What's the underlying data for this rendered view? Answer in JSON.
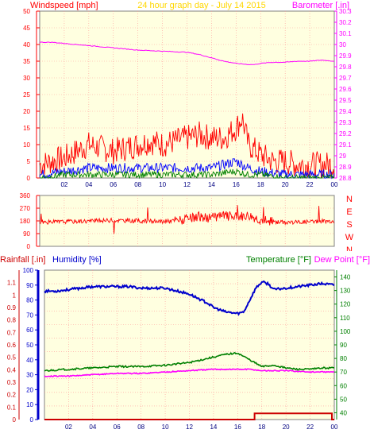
{
  "colors": {
    "background": "#ffffe0",
    "frame": "#808080",
    "grid": "#ff9999",
    "wind_avg": "#0000ff",
    "wind_gust": "#ff0000",
    "wind_min": "#008000",
    "barometer": "#ff00ff",
    "direction": "#ff0000",
    "rain": "#cc0000",
    "humidity": "#0000cc",
    "temperature": "#008000",
    "dewpoint": "#ff00ff",
    "title": "#ffd700"
  },
  "chart_data": [
    {
      "type": "line",
      "title": "24 hour graph day - July 14 2015",
      "xlabel": "",
      "ylabel_left": "Windspeed [mph]",
      "ylabel_right": "Barometer [.in]",
      "x_ticks": [
        "02",
        "04",
        "06",
        "08",
        "10",
        "12",
        "14",
        "16",
        "18",
        "20",
        "22",
        "00"
      ],
      "y_left_ticks": [
        "0",
        "5",
        "10",
        "15",
        "20",
        "25",
        "30",
        "35",
        "40",
        "45",
        "50"
      ],
      "y_right_ticks": [
        "28.8",
        "28.9",
        "29",
        "29.1",
        "29.2",
        "29.3",
        "29.4",
        "29.5",
        "29.6",
        "29.7",
        "29.8",
        "29.9",
        "30",
        "30.1",
        "30.2",
        "30.3"
      ],
      "xlim": [
        0,
        24
      ],
      "ylim_left": [
        0,
        50
      ],
      "ylim_right": [
        28.8,
        30.3
      ],
      "grid": true,
      "series": [
        {
          "key": "gust",
          "axis": "left",
          "x": [
            0,
            1,
            2,
            3,
            4,
            5,
            6,
            7,
            8,
            9,
            10,
            11,
            12,
            13,
            14,
            15,
            16,
            16.5,
            17,
            18,
            19,
            20,
            21,
            22,
            23,
            24
          ],
          "y": [
            4,
            5,
            6,
            8,
            10,
            9,
            8,
            9,
            10,
            11,
            10,
            11,
            12,
            13,
            12,
            12,
            15,
            18,
            10,
            7,
            5,
            5,
            4,
            4,
            4,
            4
          ]
        },
        {
          "key": "average",
          "axis": "left",
          "x": [
            0,
            2,
            4,
            6,
            8,
            10,
            12,
            14,
            16,
            17,
            18,
            20,
            22,
            24
          ],
          "y": [
            1,
            2,
            3,
            3,
            3,
            3,
            3,
            3,
            5,
            3,
            2,
            1,
            1,
            1
          ]
        },
        {
          "key": "minimum",
          "axis": "left",
          "x": [
            0,
            2,
            4,
            6,
            8,
            10,
            12,
            14,
            16,
            17,
            18,
            20,
            22,
            24
          ],
          "y": [
            0,
            1,
            1,
            1,
            1,
            1,
            1,
            1,
            2,
            1,
            1,
            0,
            0,
            0
          ]
        },
        {
          "key": "barometer",
          "axis": "right",
          "x": [
            0,
            1,
            2,
            4,
            6,
            8,
            10,
            12,
            13,
            14,
            15,
            16,
            17,
            17.5,
            18,
            19,
            20,
            21,
            22,
            23,
            24
          ],
          "y": [
            30.02,
            30.02,
            30.01,
            29.99,
            29.97,
            29.95,
            29.94,
            29.93,
            29.91,
            29.88,
            29.85,
            29.83,
            29.82,
            29.82,
            29.83,
            29.84,
            29.84,
            29.85,
            29.85,
            29.86,
            29.85
          ]
        }
      ]
    },
    {
      "type": "line",
      "title": "",
      "x_ticks": [],
      "y_left_ticks": [
        "0",
        "90",
        "180",
        "270",
        "360"
      ],
      "y_right_ticks": [
        "N",
        "W",
        "S",
        "E",
        "N"
      ],
      "xlim": [
        0,
        24
      ],
      "ylim_left": [
        0,
        360
      ],
      "grid": true,
      "series": [
        {
          "key": "direction",
          "axis": "left",
          "x": [
            0,
            2,
            4,
            6,
            8,
            10,
            12,
            13,
            14,
            15,
            16,
            17,
            18,
            19,
            20,
            22,
            24
          ],
          "y": [
            170,
            175,
            180,
            185,
            180,
            175,
            190,
            210,
            200,
            220,
            210,
            220,
            190,
            175,
            170,
            175,
            180
          ]
        }
      ]
    },
    {
      "type": "line",
      "title": "",
      "xlabel": "",
      "legend_left": [
        "Rainfall [.in]",
        "Humidity [%]"
      ],
      "legend_right": [
        "Temperature [°F]",
        "Dew Point [°F]"
      ],
      "x_ticks": [
        "02",
        "04",
        "06",
        "08",
        "10",
        "12",
        "14",
        "16",
        "18",
        "20",
        "22",
        "00"
      ],
      "y_rain_ticks": [
        "0",
        "0.1",
        "0.2",
        "0.3",
        "0.4",
        "0.5",
        "0.6",
        "0.7",
        "0.8",
        "0.9",
        "1",
        "1.1"
      ],
      "y_humidity_ticks": [
        "0",
        "10",
        "20",
        "30",
        "40",
        "50",
        "60",
        "70",
        "80",
        "90",
        "100"
      ],
      "y_temp_ticks": [
        "40",
        "50",
        "60",
        "70",
        "80",
        "90",
        "100",
        "110",
        "120",
        "130",
        "140"
      ],
      "xlim": [
        0,
        24
      ],
      "ylim_rain": [
        0,
        1.2
      ],
      "ylim_humidity": [
        0,
        100
      ],
      "ylim_temp": [
        35,
        145
      ],
      "grid": true,
      "series": [
        {
          "key": "rainfall",
          "axis": "rain",
          "x": [
            0,
            17.4,
            17.4,
            23.8,
            23.8,
            24
          ],
          "y": [
            0,
            0,
            0.05,
            0.05,
            0,
            0
          ]
        },
        {
          "key": "humidity",
          "axis": "humidity",
          "x": [
            0,
            1,
            2,
            3,
            4,
            5,
            6,
            7,
            8,
            9,
            10,
            11,
            12,
            13,
            13.5,
            14,
            15,
            16,
            16.5,
            17,
            17.5,
            18,
            18.5,
            19,
            20,
            21,
            22,
            23,
            24
          ],
          "y": [
            86,
            86,
            87,
            88,
            89,
            89,
            89,
            89,
            88,
            88,
            88,
            86,
            84,
            80,
            78,
            75,
            72,
            71,
            72,
            80,
            88,
            92,
            91,
            87,
            88,
            89,
            90,
            91,
            90
          ]
        },
        {
          "key": "temperature",
          "axis": "temp",
          "x": [
            0,
            2,
            4,
            6,
            8,
            10,
            12,
            13,
            14,
            15,
            16,
            17,
            18,
            19,
            20,
            21,
            22,
            23,
            24
          ],
          "y": [
            71,
            72,
            73,
            74,
            74,
            75,
            77,
            79,
            81,
            83,
            84,
            79,
            74,
            75,
            73,
            72,
            72,
            73,
            73
          ]
        },
        {
          "key": "dewpoint",
          "axis": "temp",
          "x": [
            0,
            2,
            4,
            6,
            8,
            10,
            12,
            14,
            16,
            17,
            18,
            20,
            22,
            24
          ],
          "y": [
            67,
            67,
            68,
            69,
            69,
            70,
            71,
            72,
            72,
            72,
            71,
            71,
            70,
            70
          ]
        }
      ],
      "annotations": []
    }
  ]
}
